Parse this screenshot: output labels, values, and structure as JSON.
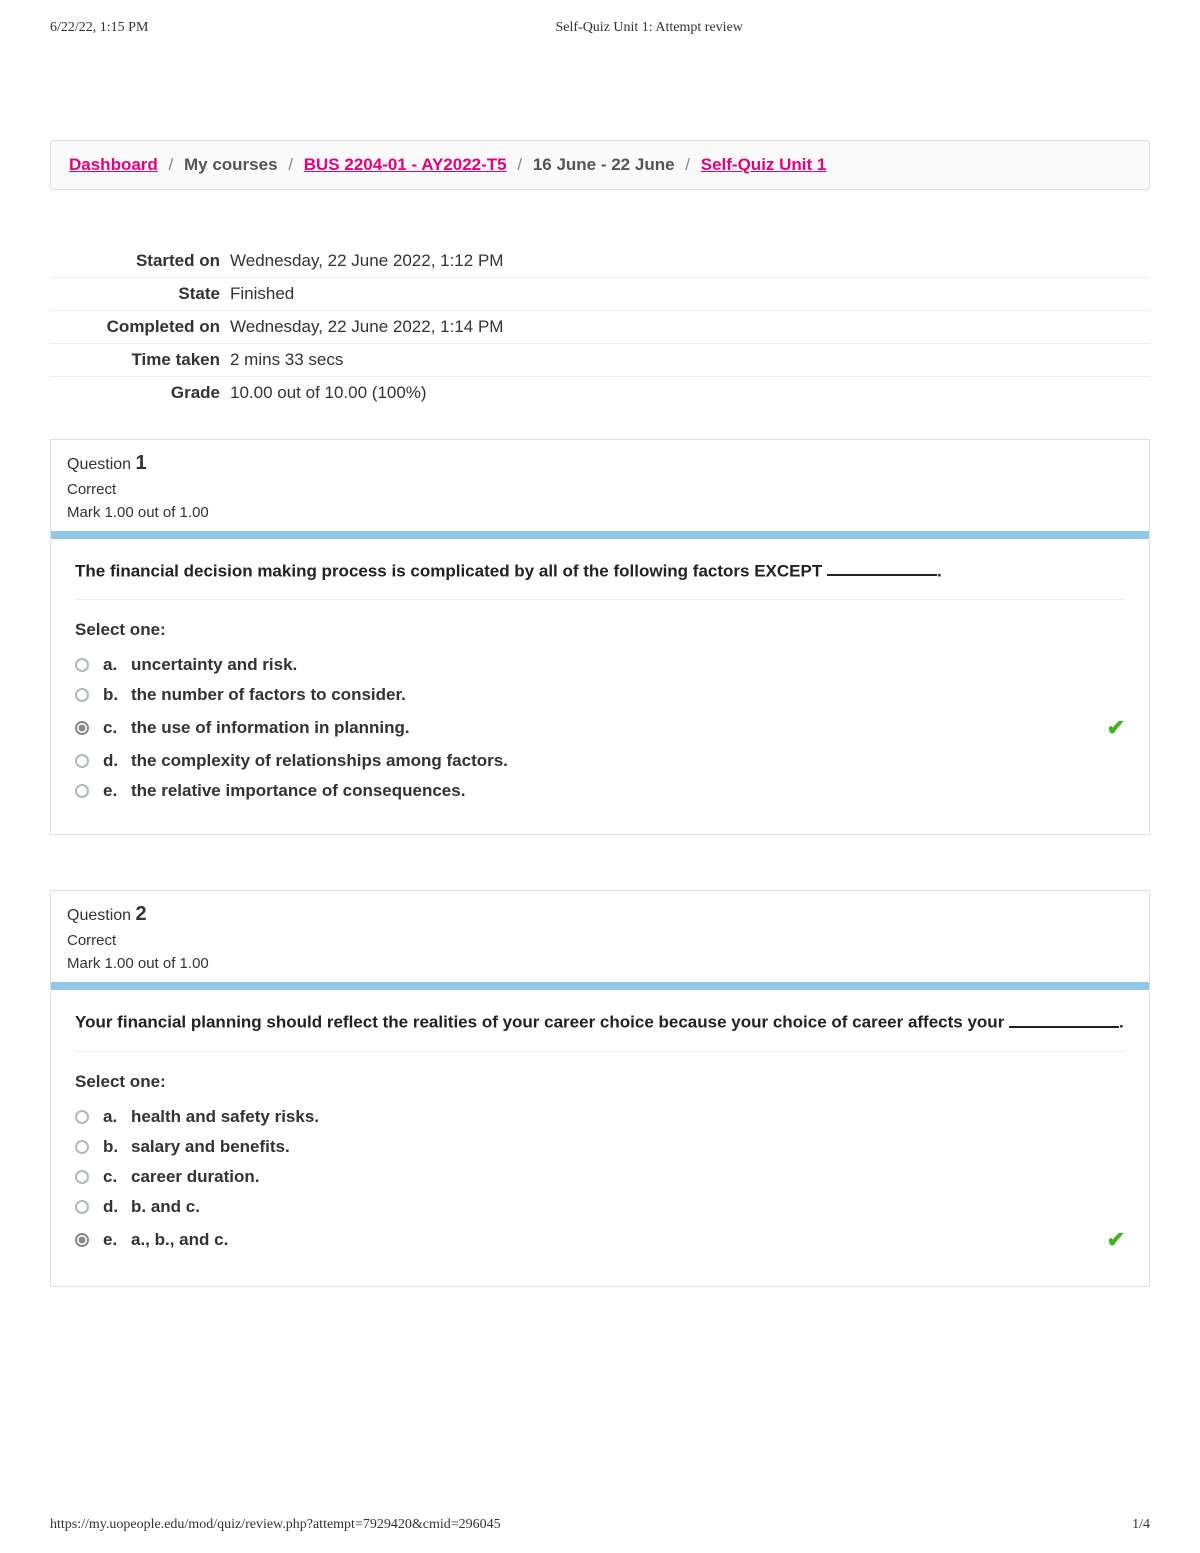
{
  "print": {
    "timestamp": "6/22/22, 1:15 PM",
    "title": "Self-Quiz Unit 1: Attempt review",
    "url": "https://my.uopeople.edu/mod/quiz/review.php?attempt=7929420&cmid=296045",
    "pagenum": "1/4"
  },
  "breadcrumb": {
    "dashboard": "Dashboard",
    "mycourses": "My courses",
    "course": "BUS 2204-01 - AY2022-T5",
    "daterange": "16 June - 22 June",
    "quiz": "Self-Quiz Unit 1"
  },
  "summary": {
    "started_label": "Started on",
    "started_value": "Wednesday, 22 June 2022, 1:12 PM",
    "state_label": "State",
    "state_value": "Finished",
    "completed_label": "Completed on",
    "completed_value": "Wednesday, 22 June 2022, 1:14 PM",
    "time_label": "Time taken",
    "time_value": "2 mins 33 secs",
    "grade_label": "Grade",
    "grade_value": "10.00 out of 10.00 (100%)"
  },
  "questions": [
    {
      "number": "1",
      "qlabel": "Question",
      "state": "Correct",
      "mark": "Mark 1.00 out of 1.00",
      "text_before": "The financial decision making process is complicated by all of the following factors EXCEPT ",
      "text_after": ".",
      "prompt": "Select one:",
      "options": [
        {
          "letter": "a.",
          "text": "uncertainty and risk.",
          "selected": false,
          "correct": false
        },
        {
          "letter": "b.",
          "text": "the number of factors to consider.",
          "selected": false,
          "correct": false
        },
        {
          "letter": "c.",
          "text": "the use of information in planning.",
          "selected": true,
          "correct": true
        },
        {
          "letter": "d.",
          "text": "the complexity of relationships among factors.",
          "selected": false,
          "correct": false
        },
        {
          "letter": "e.",
          "text": "the relative importance of consequences.",
          "selected": false,
          "correct": false
        }
      ]
    },
    {
      "number": "2",
      "qlabel": "Question",
      "state": "Correct",
      "mark": "Mark 1.00 out of 1.00",
      "text_before": "Your financial planning should reflect the realities of your career choice because your choice of career affects your ",
      "text_after": ".",
      "prompt": "Select one:",
      "options": [
        {
          "letter": "a.",
          "text": "health and safety risks.",
          "selected": false,
          "correct": false
        },
        {
          "letter": "b.",
          "text": "salary and benefits.",
          "selected": false,
          "correct": false
        },
        {
          "letter": "c.",
          "text": "career duration.",
          "selected": false,
          "correct": false
        },
        {
          "letter": "d.",
          "text": "b. and c.",
          "selected": false,
          "correct": false
        },
        {
          "letter": "e.",
          "text": "a., b., and c.",
          "selected": true,
          "correct": true
        }
      ]
    }
  ],
  "colors": {
    "accent_bar": "#8ec9e6",
    "link": "#e6007e",
    "tick": "#3fb618",
    "border": "#e0e0e0"
  }
}
